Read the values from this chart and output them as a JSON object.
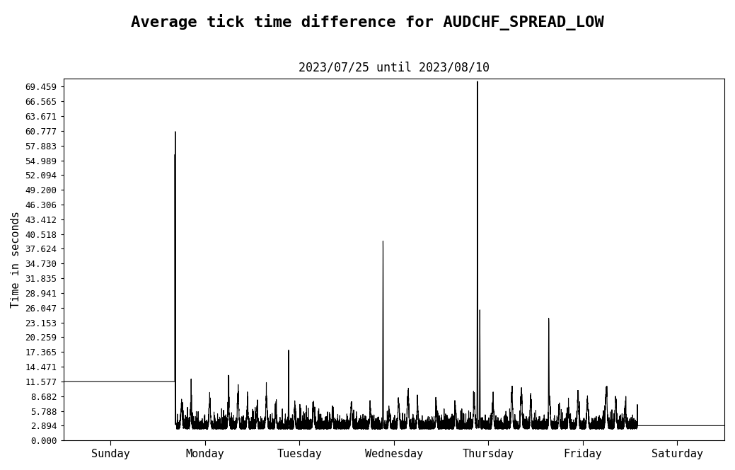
{
  "title": "Average tick time difference for AUDCHF_SPREAD_LOW",
  "subtitle": "2023/07/25 until 2023/08/10",
  "ylabel": "Time in seconds",
  "xlabel_ticks": [
    "Sunday",
    "Monday",
    "Tuesday",
    "Wednesday",
    "Thursday",
    "Friday",
    "Saturday"
  ],
  "yticks": [
    0.0,
    2.894,
    5.788,
    8.682,
    11.577,
    14.471,
    17.365,
    20.259,
    23.153,
    26.047,
    28.941,
    31.835,
    34.73,
    37.624,
    40.518,
    43.412,
    46.306,
    49.2,
    52.094,
    54.989,
    57.883,
    60.777,
    63.671,
    66.565,
    69.459
  ],
  "ylim": [
    0.0,
    71.0
  ],
  "line_color": "black",
  "line_width": 0.8,
  "bg_color": "white",
  "title_fontsize": 16,
  "subtitle_fontsize": 12,
  "ylabel_fontsize": 11,
  "xlabel_fontsize": 11,
  "ytick_fontsize": 9,
  "xtick_fontsize": 11,
  "num_points": 10080,
  "random_seed": 7
}
